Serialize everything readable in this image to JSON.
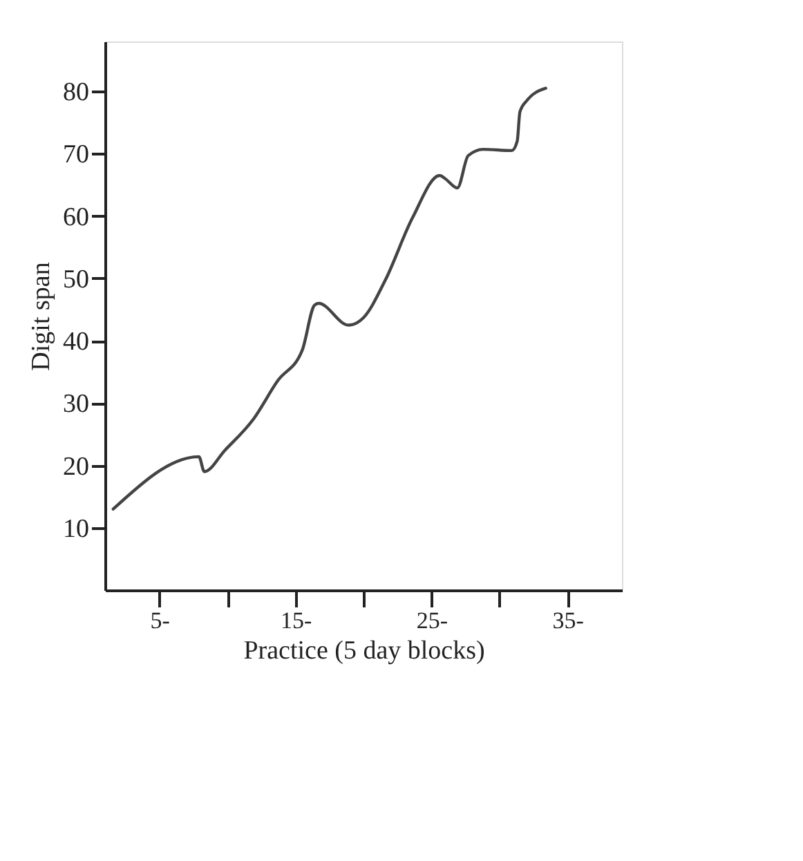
{
  "chart_data": {
    "type": "line",
    "xlabel": "Practice (5 day blocks)",
    "ylabel": "Digit span",
    "xlim": [
      1,
      39
    ],
    "ylim": [
      0,
      88
    ],
    "xticks": [
      {
        "value": 5,
        "label": "5-"
      },
      {
        "value": 10,
        "label": null
      },
      {
        "value": 15,
        "label": "15-"
      },
      {
        "value": 20,
        "label": null
      },
      {
        "value": 25,
        "label": "25-"
      },
      {
        "value": 30,
        "label": null
      },
      {
        "value": 35,
        "label": "35-"
      }
    ],
    "yticks": [
      10,
      20,
      30,
      40,
      50,
      60,
      70,
      80
    ],
    "grid": false,
    "marker": "none",
    "line_style": "solid",
    "series": [
      {
        "color": "#444444",
        "x": [
          1.6,
          7.9,
          8.3,
          9.8,
          11.9,
          13.7,
          15.5,
          16.4,
          16.7,
          18.9,
          20,
          21.6,
          23.6,
          25.6,
          26,
          26.9,
          27.7,
          28.8,
          30.9,
          31.3,
          31.5,
          32,
          33.4
        ],
        "values": [
          13,
          21.4,
          19,
          22.4,
          27.4,
          33.6,
          38.5,
          45.7,
          46,
          42.5,
          43.7,
          49.7,
          59.7,
          66.5,
          66,
          64.5,
          69.7,
          70.7,
          70.5,
          72,
          76.7,
          78.5,
          80.5
        ]
      }
    ]
  }
}
